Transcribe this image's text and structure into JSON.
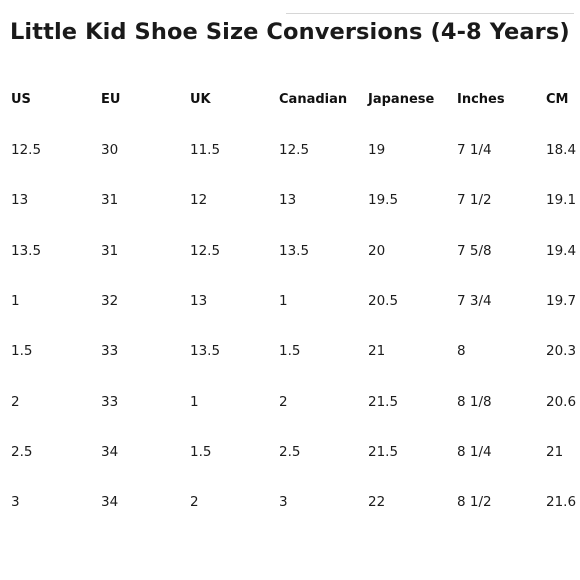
{
  "title": "Little Kid Shoe Size Conversions (4-8 Years)",
  "table": {
    "headers": [
      "US",
      "EU",
      "UK",
      "Canadian",
      "Japanese",
      "Inches",
      "CM"
    ],
    "rows": [
      [
        "12.5",
        "30",
        "11.5",
        "12.5",
        "19",
        "7 1/4",
        "18.4"
      ],
      [
        "13",
        "31",
        "12",
        "13",
        "19.5",
        "7 1/2",
        "19.1"
      ],
      [
        "13.5",
        "31",
        "12.5",
        "13.5",
        "20",
        "7 5/8",
        "19.4"
      ],
      [
        "1",
        "32",
        "13",
        "1",
        "20.5",
        "7 3/4",
        "19.7"
      ],
      [
        "1.5",
        "33",
        "13.5",
        "1.5",
        "21",
        "8",
        "20.3"
      ],
      [
        "2",
        "33",
        "1",
        "2",
        "21.5",
        "8 1/8",
        "20.6"
      ],
      [
        "2.5",
        "34",
        "1.5",
        "2.5",
        "21.5",
        "8 1/4",
        "21"
      ],
      [
        "3",
        "34",
        "2",
        "3",
        "22",
        "8 1/2",
        "21.6"
      ]
    ]
  }
}
